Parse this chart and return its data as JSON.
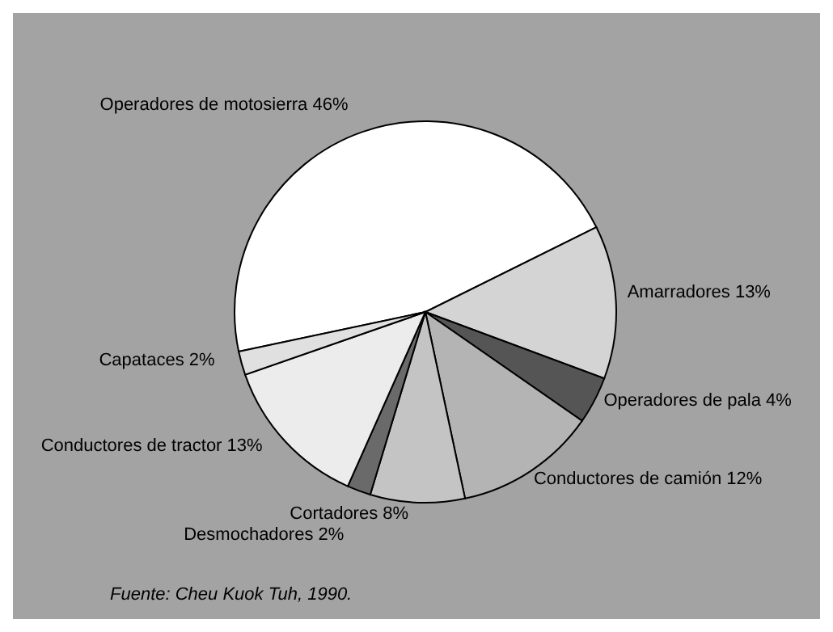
{
  "chart_data": {
    "type": "pie",
    "categories": [
      "Operadores de motosierra",
      "Amarradores",
      "Operadores de pala",
      "Conductores de camión",
      "Cortadores",
      "Desmochadores",
      "Conductores de tractor",
      "Capataces"
    ],
    "values": [
      46,
      13,
      4,
      12,
      8,
      2,
      13,
      2
    ],
    "value_labels": [
      "46%",
      "13%",
      "4%",
      "12%",
      "8%",
      "2%",
      "13%",
      "2%"
    ],
    "colors": [
      "#ffffff",
      "#d4d4d4",
      "#555555",
      "#b4b4b4",
      "#c4c4c4",
      "#6a6a6a",
      "#ececec",
      "#e0e0e0"
    ],
    "annotations": [
      "Fuente: Cheu Kuok Tuh, 1990."
    ]
  }
}
